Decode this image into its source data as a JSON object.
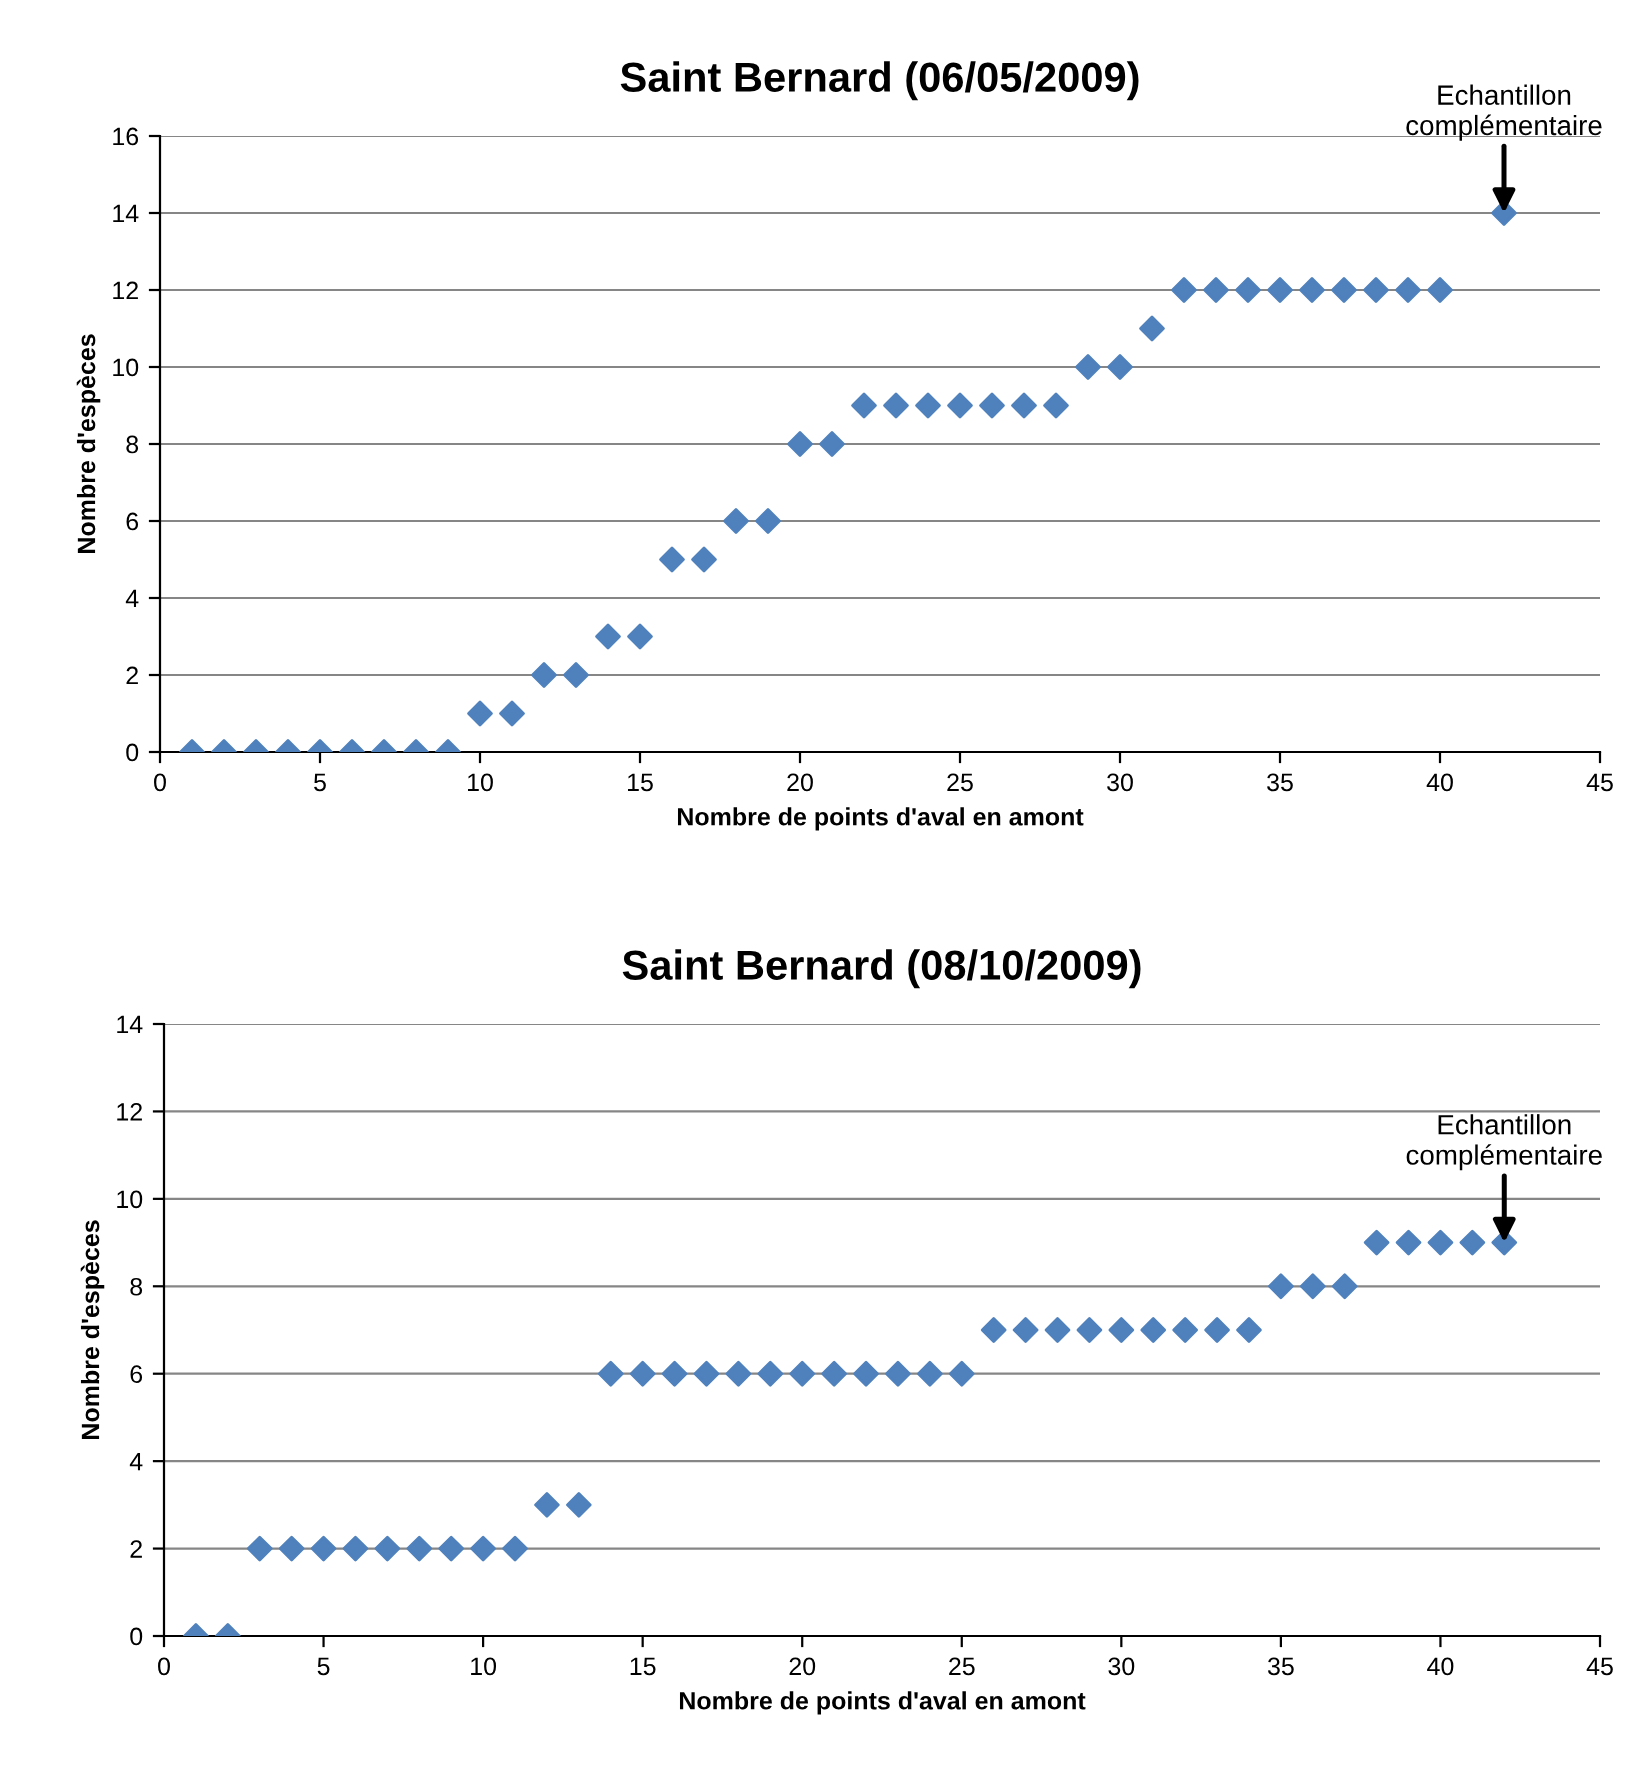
{
  "chart_data": [
    {
      "type": "scatter",
      "title": "Saint Bernard (06/05/2009)",
      "xlabel": "Nombre de points d'aval en amont",
      "ylabel": "Nombre d'espèces",
      "series": [
        {
          "color": "#4f81bd",
          "x": [
            1,
            2,
            3,
            4,
            5,
            6,
            7,
            8,
            9,
            10,
            11,
            12,
            13,
            14,
            15,
            16,
            17,
            18,
            19,
            20,
            21,
            22,
            23,
            24,
            25,
            26,
            27,
            28,
            29,
            30,
            31,
            32,
            33,
            34,
            35,
            36,
            37,
            38,
            39,
            40,
            42
          ],
          "values": [
            0,
            0,
            0,
            0,
            0,
            0,
            0,
            0,
            0,
            1,
            1,
            2,
            2,
            3,
            3,
            5,
            5,
            6,
            6,
            8,
            8,
            9,
            9,
            9,
            9,
            9,
            9,
            9,
            10,
            10,
            11,
            12,
            12,
            12,
            12,
            12,
            12,
            12,
            12,
            12,
            14
          ]
        }
      ],
      "xlim": [
        0,
        45
      ],
      "xticks": [
        0,
        5,
        10,
        15,
        20,
        25,
        30,
        35,
        40,
        45
      ],
      "ylim": [
        0,
        16
      ],
      "yticks": [
        0,
        2,
        4,
        6,
        8,
        10,
        12,
        14,
        16
      ],
      "grid": "y",
      "marker": "diamond",
      "annotations": [
        {
          "text": "Echantillon\ncomplémentaire",
          "x": 42,
          "y": 14
        }
      ]
    },
    {
      "type": "scatter",
      "title": "Saint Bernard (08/10/2009)",
      "xlabel": "Nombre de points d'aval en amont",
      "ylabel": "Nombre d'espèces",
      "series": [
        {
          "color": "#4f81bd",
          "x": [
            1,
            2,
            3,
            4,
            5,
            6,
            7,
            8,
            9,
            10,
            11,
            12,
            13,
            14,
            15,
            16,
            17,
            18,
            19,
            20,
            21,
            22,
            23,
            24,
            25,
            26,
            27,
            28,
            29,
            30,
            31,
            32,
            33,
            34,
            35,
            36,
            37,
            38,
            39,
            40,
            41,
            42
          ],
          "values": [
            0,
            0,
            2,
            2,
            2,
            2,
            2,
            2,
            2,
            2,
            2,
            3,
            3,
            6,
            6,
            6,
            6,
            6,
            6,
            6,
            6,
            6,
            6,
            6,
            6,
            7,
            7,
            7,
            7,
            7,
            7,
            7,
            7,
            7,
            8,
            8,
            8,
            9,
            9,
            9,
            9,
            9
          ]
        }
      ],
      "xlim": [
        0,
        45
      ],
      "xticks": [
        0,
        5,
        10,
        15,
        20,
        25,
        30,
        35,
        40,
        45
      ],
      "ylim": [
        0,
        14
      ],
      "yticks": [
        0,
        2,
        4,
        6,
        8,
        10,
        12,
        14
      ],
      "grid": "y",
      "marker": "diamond",
      "annotations": [
        {
          "text": "Echantillon\ncomplémentaire",
          "x": 42,
          "y": 9
        }
      ]
    }
  ]
}
